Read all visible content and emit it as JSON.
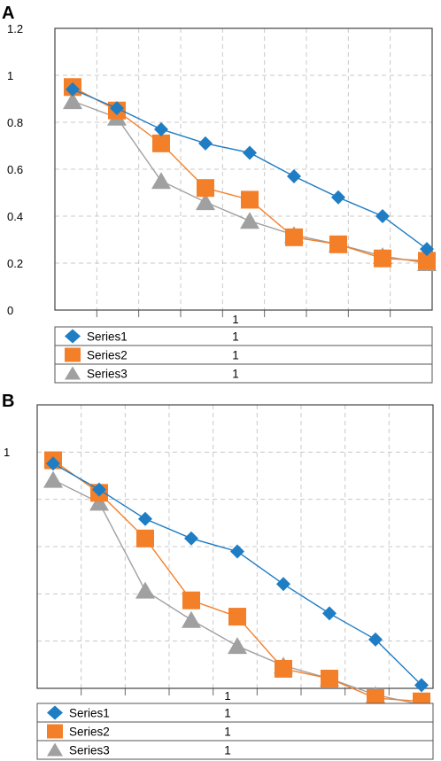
{
  "colors": {
    "Series1": "#1f7dc4",
    "Series2": "#f47f29",
    "Series3": "#a0a0a0"
  },
  "panels": [
    {
      "label": "A"
    },
    {
      "label": "B"
    }
  ],
  "chart_data": [
    {
      "type": "line",
      "categories": [
        "1",
        "1",
        "1",
        "1",
        "1",
        "1",
        "1",
        "1",
        "1"
      ],
      "x_tick_label": "1",
      "ylim": [
        0,
        1.2
      ],
      "ytick_labels": [
        "0",
        "0.2",
        "0.4",
        "0.6",
        "0.8",
        "1",
        "1.2"
      ],
      "grid": true,
      "legend": "bottom-table",
      "series": [
        {
          "name": "Series1",
          "marker": "diamond",
          "table_value": "1",
          "values": [
            0.94,
            0.86,
            0.77,
            0.71,
            0.67,
            0.57,
            0.48,
            0.4,
            0.26
          ]
        },
        {
          "name": "Series2",
          "marker": "square",
          "table_value": "1",
          "values": [
            0.95,
            0.85,
            0.71,
            0.52,
            0.47,
            0.31,
            0.28,
            0.22,
            0.21
          ]
        },
        {
          "name": "Series3",
          "marker": "triangle",
          "table_value": "1",
          "values": [
            0.89,
            0.82,
            0.55,
            0.46,
            0.38,
            0.32,
            0.28,
            0.23,
            0.2
          ]
        }
      ]
    },
    {
      "type": "line",
      "categories": [
        "1",
        "1",
        "1",
        "1",
        "1",
        "1",
        "1",
        "1",
        "1"
      ],
      "x_tick_label": "1",
      "ylim": [
        0,
        1.2
      ],
      "ytick_labels": [
        "1"
      ],
      "grid": true,
      "legend": "bottom-table",
      "series": [
        {
          "name": "Series1",
          "marker": "diamond",
          "table_value": "1",
          "values": [
            0.94,
            0.86,
            0.77,
            0.71,
            0.67,
            0.57,
            0.48,
            0.4,
            0.26
          ]
        },
        {
          "name": "Series2",
          "marker": "square",
          "table_value": "1",
          "values": [
            0.95,
            0.85,
            0.71,
            0.52,
            0.47,
            0.31,
            0.28,
            0.22,
            0.21
          ]
        },
        {
          "name": "Series3",
          "marker": "triangle",
          "table_value": "1",
          "values": [
            0.89,
            0.82,
            0.55,
            0.46,
            0.38,
            0.32,
            0.28,
            0.23,
            0.2
          ]
        }
      ]
    }
  ]
}
